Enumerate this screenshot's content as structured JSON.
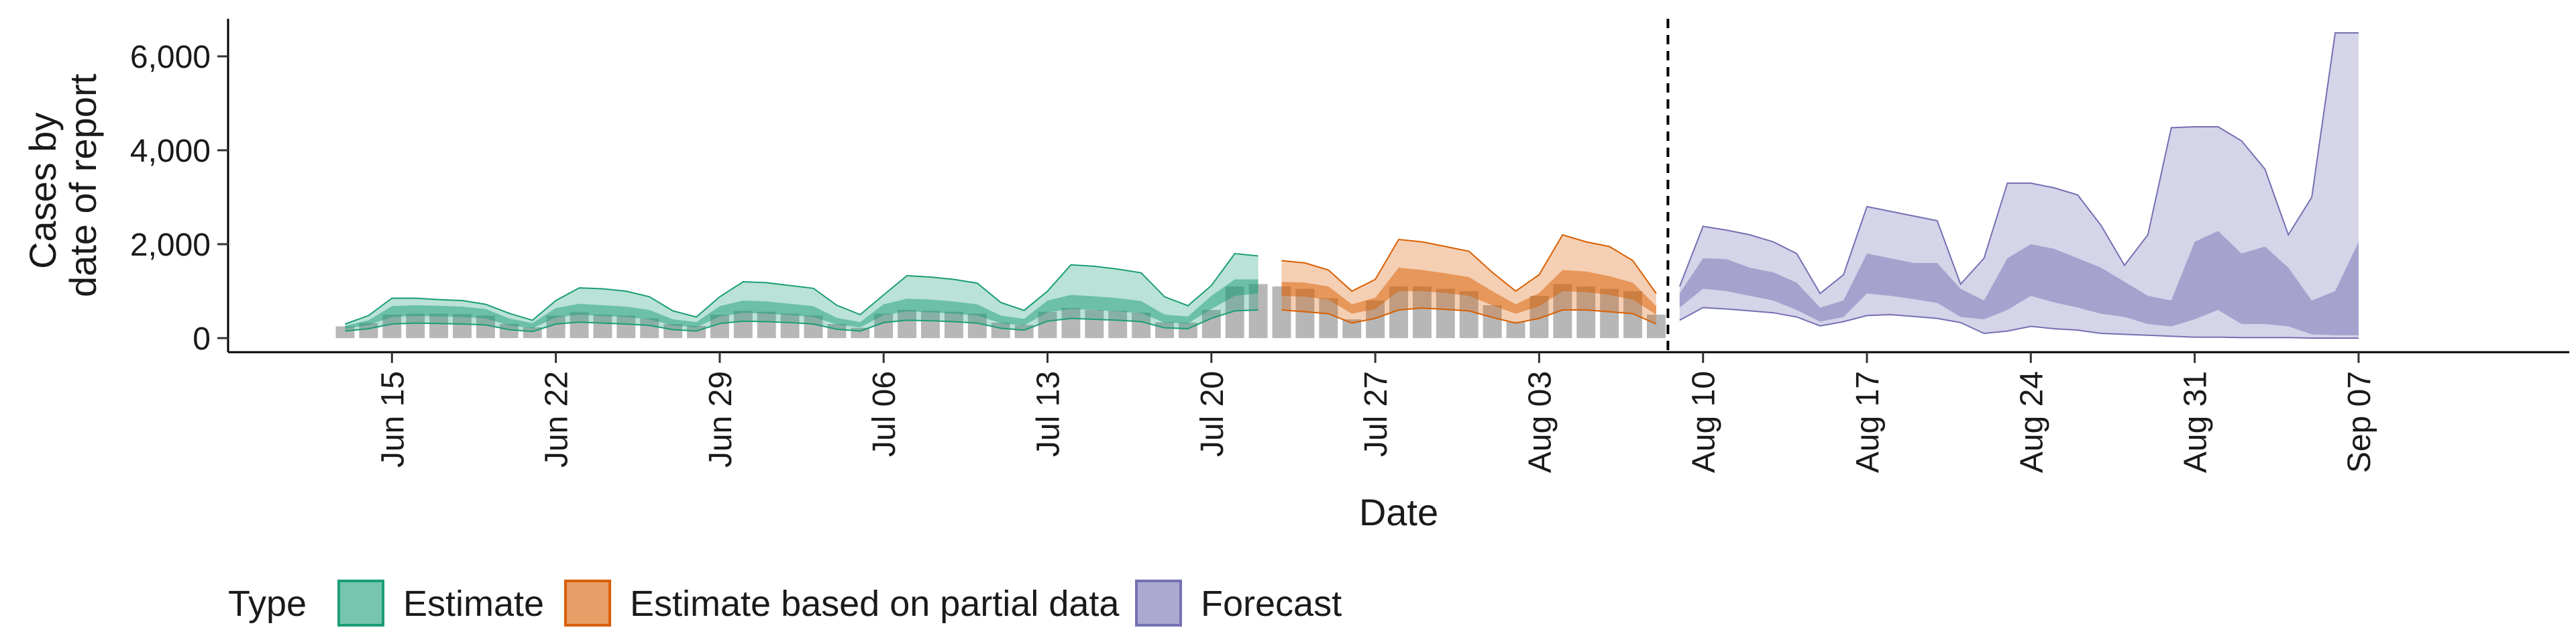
{
  "chart_data": {
    "type": "area",
    "title": "",
    "xlabel": "Date",
    "ylabel_lines": [
      "Cases by",
      "date of report"
    ],
    "ylim": [
      -300,
      6800
    ],
    "y_ticks": [
      0,
      2000,
      4000,
      6000
    ],
    "y_tick_labels": [
      "0",
      "2,000",
      "4,000",
      "6,000"
    ],
    "x_ticks": [
      "2020-06-15",
      "2020-06-22",
      "2020-06-29",
      "2020-07-06",
      "2020-07-13",
      "2020-07-20",
      "2020-07-27",
      "2020-08-03",
      "2020-08-10",
      "2020-08-17",
      "2020-08-24",
      "2020-08-31",
      "2020-09-07"
    ],
    "x_tick_labels": [
      "Jun 15",
      "Jun 22",
      "Jun 29",
      "Jul 06",
      "Jul 13",
      "Jul 20",
      "Jul 27",
      "Aug 03",
      "Aug 10",
      "Aug 17",
      "Aug 24",
      "Aug 31",
      "Sep 07"
    ],
    "xlim": [
      "2020-06-08",
      "2020-09-16"
    ],
    "forecast_start": "2020-08-09",
    "grid": false,
    "legend": {
      "title": "Type",
      "position": "bottom",
      "entries": [
        {
          "name": "Estimate",
          "color": "#1b9e77"
        },
        {
          "name": "Estimate based on partial data",
          "color": "#d95f02"
        },
        {
          "name": "Forecast",
          "color": "#7570b3"
        }
      ]
    },
    "reported_cases": {
      "color": "#b3b3b3",
      "x": [
        "2020-06-13",
        "2020-06-14",
        "2020-06-15",
        "2020-06-16",
        "2020-06-17",
        "2020-06-18",
        "2020-06-19",
        "2020-06-20",
        "2020-06-21",
        "2020-06-22",
        "2020-06-23",
        "2020-06-24",
        "2020-06-25",
        "2020-06-26",
        "2020-06-27",
        "2020-06-28",
        "2020-06-29",
        "2020-06-30",
        "2020-07-01",
        "2020-07-02",
        "2020-07-03",
        "2020-07-04",
        "2020-07-05",
        "2020-07-06",
        "2020-07-07",
        "2020-07-08",
        "2020-07-09",
        "2020-07-10",
        "2020-07-11",
        "2020-07-12",
        "2020-07-13",
        "2020-07-14",
        "2020-07-15",
        "2020-07-16",
        "2020-07-17",
        "2020-07-18",
        "2020-07-19",
        "2020-07-20",
        "2020-07-21",
        "2020-07-22",
        "2020-07-23",
        "2020-07-24",
        "2020-07-25",
        "2020-07-26",
        "2020-07-27",
        "2020-07-28",
        "2020-07-29",
        "2020-07-30",
        "2020-07-31",
        "2020-08-01",
        "2020-08-02",
        "2020-08-03",
        "2020-08-04",
        "2020-08-05",
        "2020-08-06",
        "2020-08-07",
        "2020-08-08"
      ],
      "values": [
        250,
        320,
        500,
        520,
        520,
        510,
        480,
        300,
        230,
        480,
        550,
        500,
        480,
        420,
        300,
        260,
        500,
        580,
        560,
        520,
        480,
        300,
        220,
        520,
        600,
        580,
        560,
        520,
        330,
        280,
        560,
        640,
        600,
        580,
        540,
        340,
        330,
        600,
        1100,
        1150,
        1100,
        1050,
        850,
        400,
        800,
        1100,
        1100,
        1050,
        1000,
        700,
        350,
        900,
        1150,
        1100,
        1050,
        1000,
        500
      ]
    },
    "series": [
      {
        "name": "Estimate",
        "color": "#1b9e77",
        "x": [
          "2020-06-13",
          "2020-06-14",
          "2020-06-15",
          "2020-06-16",
          "2020-06-17",
          "2020-06-18",
          "2020-06-19",
          "2020-06-20",
          "2020-06-21",
          "2020-06-22",
          "2020-06-23",
          "2020-06-24",
          "2020-06-25",
          "2020-06-26",
          "2020-06-27",
          "2020-06-28",
          "2020-06-29",
          "2020-06-30",
          "2020-07-01",
          "2020-07-02",
          "2020-07-03",
          "2020-07-04",
          "2020-07-05",
          "2020-07-06",
          "2020-07-07",
          "2020-07-08",
          "2020-07-09",
          "2020-07-10",
          "2020-07-11",
          "2020-07-12",
          "2020-07-13",
          "2020-07-14",
          "2020-07-15",
          "2020-07-16",
          "2020-07-17",
          "2020-07-18",
          "2020-07-19",
          "2020-07-20",
          "2020-07-21",
          "2020-07-22"
        ],
        "lower_90": [
          150,
          200,
          300,
          320,
          310,
          300,
          280,
          180,
          140,
          300,
          340,
          320,
          300,
          270,
          180,
          150,
          310,
          360,
          350,
          330,
          300,
          190,
          150,
          330,
          380,
          370,
          350,
          320,
          210,
          170,
          360,
          420,
          400,
          380,
          350,
          220,
          200,
          420,
          580,
          600
        ],
        "lower_50": [
          200,
          280,
          450,
          470,
          460,
          450,
          420,
          270,
          210,
          440,
          500,
          470,
          450,
          400,
          270,
          230,
          460,
          540,
          520,
          490,
          450,
          290,
          230,
          490,
          570,
          550,
          520,
          480,
          320,
          270,
          550,
          620,
          600,
          570,
          530,
          330,
          310,
          620,
          900,
          950
        ],
        "upper_50": [
          260,
          380,
          680,
          700,
          690,
          670,
          620,
          420,
          320,
          640,
          730,
          700,
          670,
          600,
          400,
          340,
          680,
          800,
          780,
          730,
          680,
          430,
          340,
          720,
          840,
          820,
          780,
          720,
          480,
          410,
          800,
          920,
          890,
          850,
          790,
          500,
          460,
          900,
          1250,
          1250
        ],
        "upper_90": [
          300,
          480,
          850,
          850,
          820,
          800,
          720,
          530,
          380,
          800,
          1070,
          1050,
          1000,
          880,
          580,
          450,
          880,
          1200,
          1180,
          1120,
          1060,
          700,
          500,
          920,
          1330,
          1300,
          1250,
          1170,
          760,
          590,
          1000,
          1560,
          1530,
          1470,
          1390,
          880,
          690,
          1120,
          1800,
          1750
        ]
      },
      {
        "name": "Estimate based on partial data",
        "color": "#d95f02",
        "x": [
          "2020-07-23",
          "2020-07-24",
          "2020-07-25",
          "2020-07-26",
          "2020-07-27",
          "2020-07-28",
          "2020-07-29",
          "2020-07-30",
          "2020-07-31",
          "2020-08-01",
          "2020-08-02",
          "2020-08-03",
          "2020-08-04",
          "2020-08-05",
          "2020-08-06",
          "2020-08-07",
          "2020-08-08"
        ],
        "lower_90": [
          600,
          560,
          520,
          320,
          420,
          600,
          640,
          610,
          580,
          440,
          320,
          420,
          600,
          600,
          560,
          520,
          300
        ],
        "lower_50": [
          900,
          880,
          820,
          520,
          620,
          1000,
          1000,
          960,
          900,
          700,
          520,
          680,
          1000,
          980,
          920,
          820,
          500
        ],
        "upper_50": [
          1200,
          1180,
          1100,
          720,
          860,
          1500,
          1450,
          1380,
          1300,
          1000,
          720,
          960,
          1450,
          1420,
          1320,
          1180,
          680
        ],
        "upper_90": [
          1650,
          1600,
          1450,
          1000,
          1250,
          2100,
          2050,
          1950,
          1850,
          1400,
          1000,
          1350,
          2200,
          2050,
          1950,
          1650,
          950
        ]
      },
      {
        "name": "Forecast",
        "color": "#7570b3",
        "x": [
          "2020-08-09",
          "2020-08-10",
          "2020-08-11",
          "2020-08-12",
          "2020-08-13",
          "2020-08-14",
          "2020-08-15",
          "2020-08-16",
          "2020-08-17",
          "2020-08-18",
          "2020-08-19",
          "2020-08-20",
          "2020-08-21",
          "2020-08-22",
          "2020-08-23",
          "2020-08-24",
          "2020-08-25",
          "2020-08-26",
          "2020-08-27",
          "2020-08-28",
          "2020-08-29",
          "2020-08-30",
          "2020-08-31",
          "2020-09-01",
          "2020-09-02",
          "2020-09-03",
          "2020-09-04",
          "2020-09-05",
          "2020-09-06",
          "2020-09-07"
        ],
        "lower_90": [
          380,
          650,
          620,
          580,
          540,
          450,
          260,
          350,
          480,
          500,
          460,
          420,
          330,
          100,
          150,
          250,
          200,
          170,
          100,
          80,
          60,
          40,
          20,
          20,
          10,
          10,
          10,
          0,
          0,
          0
        ],
        "lower_50": [
          650,
          1050,
          1000,
          900,
          800,
          600,
          350,
          450,
          950,
          900,
          830,
          750,
          450,
          400,
          600,
          900,
          760,
          650,
          520,
          450,
          300,
          250,
          400,
          600,
          300,
          300,
          250,
          80,
          60,
          60
        ],
        "upper_50": [
          950,
          1700,
          1680,
          1500,
          1400,
          1180,
          650,
          800,
          1800,
          1700,
          1600,
          1600,
          1050,
          800,
          1700,
          2000,
          1900,
          1700,
          1500,
          1200,
          900,
          800,
          2050,
          2280,
          1800,
          1950,
          1500,
          800,
          1000,
          2050
        ],
        "upper_90": [
          1100,
          2380,
          2300,
          2200,
          2050,
          1800,
          950,
          1350,
          2800,
          2700,
          2600,
          2500,
          1150,
          1700,
          3300,
          3300,
          3200,
          3050,
          2400,
          1550,
          2200,
          4480,
          4500,
          4500,
          4200,
          3600,
          2200,
          3000,
          6500,
          6500
        ]
      }
    ]
  }
}
